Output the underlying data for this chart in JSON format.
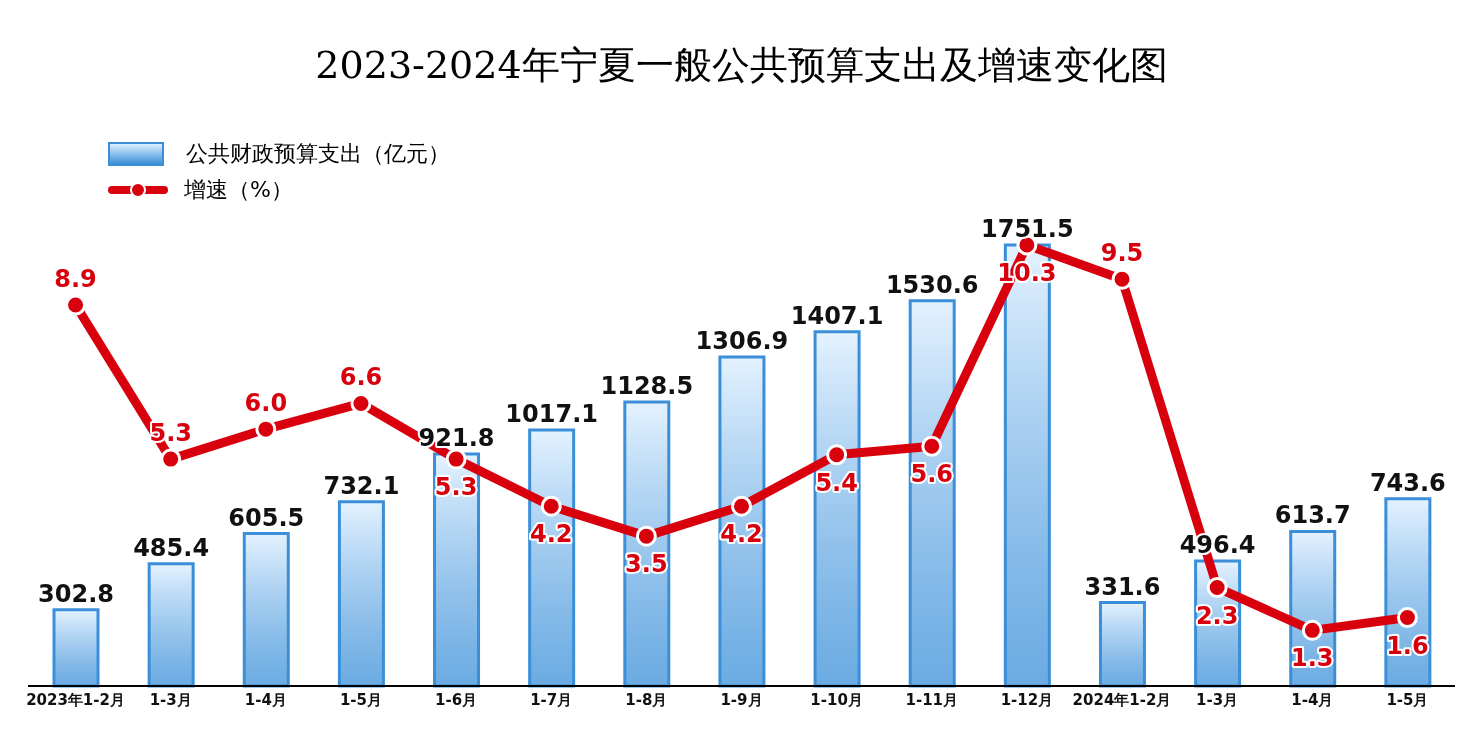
{
  "chart_data": {
    "type": "bar",
    "title": "2023-2024年宁夏一般公共预算支出及增速变化图",
    "data_labels": true,
    "legend": "top left",
    "grid": false,
    "marker": "circle",
    "categories": [
      "2023年1-2月",
      "1-3月",
      "1-4月",
      "1-5月",
      "1-6月",
      "1-7月",
      "1-8月",
      "1-9月",
      "1-10月",
      "1-11月",
      "1-12月",
      "2024年1-2月",
      "1-3月",
      "1-4月",
      "1-5月"
    ],
    "series": [
      {
        "name": "公共财政预算支出（亿元）",
        "color": "#3a8fd8",
        "values": [
          302.8,
          485.4,
          605.5,
          732.1,
          921.8,
          1017.1,
          1128.5,
          1306.9,
          1407.1,
          1530.6,
          1751.5,
          331.6,
          496.4,
          613.7,
          743.6
        ]
      },
      {
        "type": "line",
        "axis": "y2",
        "name": "增速（%）",
        "color": "#d9000d",
        "values": [
          8.9,
          5.3,
          6.0,
          6.6,
          5.3,
          4.2,
          3.5,
          4.2,
          5.4,
          5.6,
          10.3,
          9.5,
          2.3,
          1.3,
          1.6
        ],
        "value_labels": [
          "8.9",
          "5.3",
          "6.0",
          "6.6",
          "5.3",
          "4.2",
          "3.5",
          "4.2",
          "5.4",
          "5.6",
          "10.3",
          "9.5",
          "2.3",
          "1.3",
          "1.6"
        ]
      }
    ]
  }
}
